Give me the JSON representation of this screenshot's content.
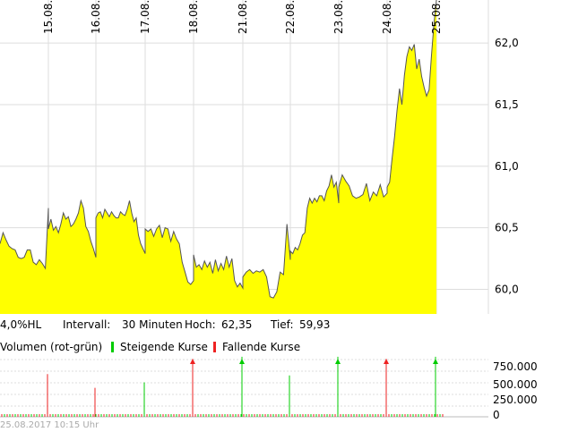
{
  "info": {
    "scale": "4,0%HL",
    "interval_label": "Intervall:",
    "interval_value": "30 Minuten",
    "high_label": "Hoch:",
    "high_value": "62,35",
    "low_label": "Tief:",
    "low_value": "59,93"
  },
  "legend": {
    "volume": "Volumen (rot-grün)",
    "rising": "Steigende Kurse",
    "falling": "Fallende Kurse"
  },
  "footer": "25.08.2017 10:15 Uhr",
  "colors": {
    "fill": "#ffff00",
    "line": "#555555",
    "grid": "#dddddd",
    "rising": "#00cc00",
    "falling": "#ee2222"
  },
  "chart_data": [
    {
      "type": "area",
      "x_ticks": [
        "15.08.",
        "16.08.",
        "17.08.",
        "18.08.",
        "21.08.",
        "22.08.",
        "23.08.",
        "24.08.",
        "25.08."
      ],
      "y_ticks": [
        "60,0",
        "60,5",
        "61,0",
        "61,5",
        "62,0"
      ],
      "ylim": [
        59.8,
        62.35
      ],
      "grid": true,
      "series": [
        {
          "segments": [
            [
              60.37,
              60.46,
              60.4,
              60.35,
              60.33,
              60.32,
              60.26,
              60.25,
              60.26,
              60.32,
              60.32,
              60.22,
              60.2,
              60.24,
              60.21,
              60.17,
              60.66
            ],
            [
              60.49,
              60.57,
              60.48,
              60.51,
              60.46,
              60.53,
              60.62,
              60.57,
              60.59,
              60.51,
              60.53,
              60.57,
              60.62,
              60.72,
              60.66,
              60.51,
              60.47,
              60.39,
              60.33,
              60.26
            ],
            [
              60.58,
              60.62,
              60.63,
              60.58,
              60.65,
              60.62,
              60.59,
              60.63,
              60.6,
              60.58,
              60.58,
              60.63,
              60.61,
              60.6,
              60.65,
              60.72,
              60.62,
              60.55,
              60.58,
              60.44,
              60.37,
              60.33,
              60.29
            ],
            [
              60.49,
              60.47,
              60.49,
              60.43,
              60.49,
              60.52,
              60.42,
              60.5,
              60.49,
              60.39,
              60.47,
              60.41,
              60.37,
              60.22,
              60.14,
              60.06,
              60.04,
              60.07
            ],
            [
              60.28,
              60.18,
              60.2,
              60.16,
              60.23,
              60.18,
              60.22,
              60.13,
              60.24,
              60.15,
              60.21,
              60.16,
              60.27,
              60.18,
              60.25,
              60.07,
              60.02,
              60.05,
              60.01
            ],
            [
              60.1,
              60.14,
              60.16,
              60.13,
              60.15,
              60.14,
              60.16,
              60.1,
              59.94,
              59.93,
              59.98,
              60.14,
              60.12,
              60.53,
              60.24
            ],
            [
              60.31,
              60.29,
              60.34,
              60.32,
              60.37,
              60.44,
              60.46,
              60.66,
              60.74,
              60.7,
              60.74,
              60.71,
              60.76,
              60.76,
              60.72,
              60.8,
              60.84,
              60.93,
              60.83,
              60.87,
              60.7
            ],
            [
              60.83,
              60.93,
              60.88,
              60.84,
              60.76,
              60.74,
              60.75,
              60.77,
              60.86,
              60.72,
              60.79,
              60.76,
              60.85,
              60.75,
              60.78
            ],
            [
              60.83,
              60.87,
              61.06,
              61.24,
              61.45,
              61.63,
              61.5,
              61.74,
              61.89,
              61.97,
              61.94,
              61.99,
              61.79,
              61.87,
              61.73,
              61.64,
              61.57,
              61.62,
              61.9,
              62.16,
              62.35
            ]
          ]
        }
      ]
    },
    {
      "type": "bar",
      "y_ticks": [
        "750.000",
        "500.000",
        "250.000",
        "0"
      ],
      "ylim": [
        0,
        830000
      ],
      "rising_spikes": [
        6,
        7,
        8
      ],
      "falling_spikes": [
        0,
        1,
        3,
        7
      ],
      "spike_days": [
        1,
        2,
        3,
        4,
        5,
        6,
        7,
        8,
        9
      ],
      "values": [
        [
          620000,
          420000,
          0,
          840000,
          0,
          0,
          0,
          840000,
          0
        ],
        [
          0,
          0,
          500000,
          0,
          870000,
          600000,
          870000,
          0,
          870000
        ]
      ]
    }
  ]
}
